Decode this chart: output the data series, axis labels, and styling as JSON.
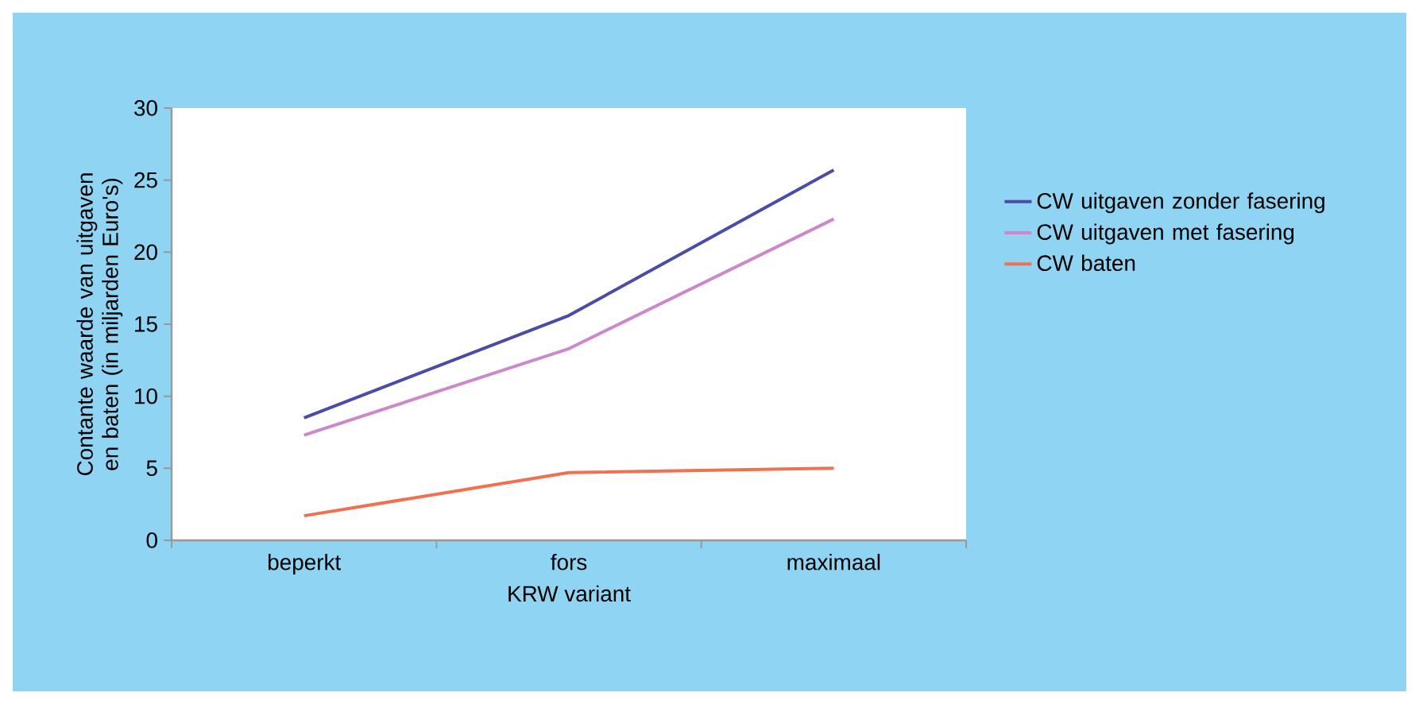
{
  "chart_data": {
    "type": "line",
    "xlabel": "KRW variant",
    "ylabel": "Contante waarde van uitgaven en baten (in miljarden Euro's)",
    "categories": [
      "beperkt",
      "fors",
      "maximaal"
    ],
    "series": [
      {
        "name": "CW uitgaven zonder fasering",
        "color": "#4b4ba8",
        "values": [
          8.5,
          15.6,
          25.7
        ]
      },
      {
        "name": "CW uitgaven met fasering",
        "color": "#cc88cc",
        "values": [
          7.3,
          13.3,
          22.3
        ]
      },
      {
        "name": "CW baten",
        "color": "#f07050",
        "values": [
          1.7,
          4.7,
          5.0
        ]
      }
    ],
    "ylim": [
      0,
      30
    ],
    "yticks": [
      0,
      5,
      10,
      15,
      20,
      25,
      30
    ],
    "grid": false,
    "legend": "right",
    "marker": "none",
    "line_style": "solid"
  }
}
